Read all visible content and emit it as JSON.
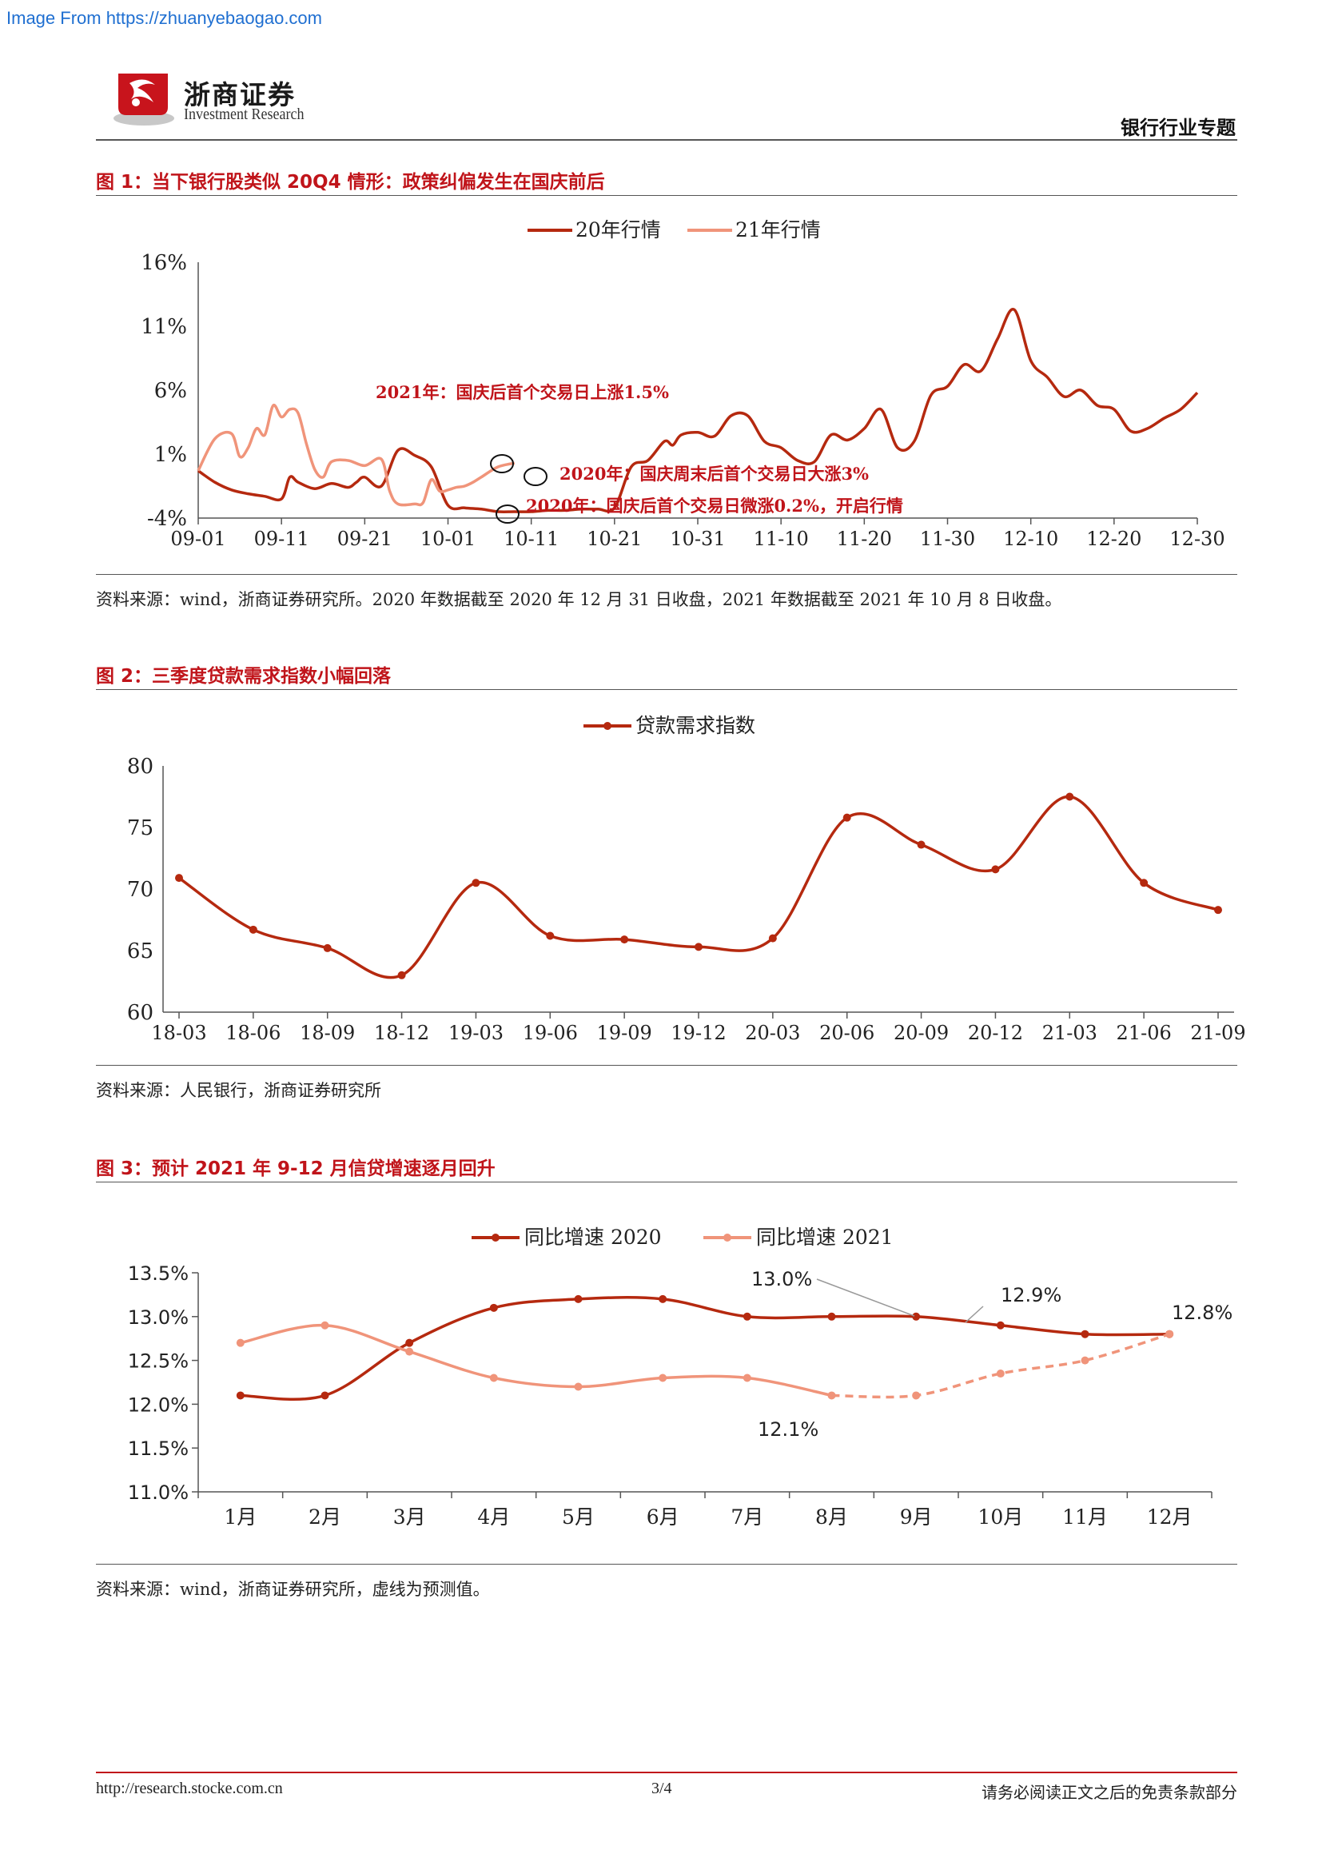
{
  "watermark": "Image From https://zhuanyebaogao.com",
  "header": {
    "brand_cn": "浙商证券",
    "brand_en": "Investment Research",
    "section": "银行行业专题"
  },
  "figures": [
    {
      "title": "图 1：当下银行股类似 20Q4 情形：政策纠偏发生在国庆前后",
      "source": "资料来源：wind，浙商证券研究所。2020 年数据截至 2020 年 12 月 31 日收盘，2021 年数据截至 2021 年 10 月 8 日收盘。"
    },
    {
      "title": "图 2：三季度贷款需求指数小幅回落",
      "source": "资料来源：人民银行，浙商证券研究所"
    },
    {
      "title": "图 3：预计 2021 年 9-12 月信贷增速逐月回升",
      "source": "资料来源：wind，浙商证券研究所，虚线为预测值。"
    }
  ],
  "footer": {
    "left": "http://research.stocke.com.cn",
    "center": "3/4",
    "right": "请务必阅读正文之后的免责条款部分"
  },
  "colors": {
    "dark": "#b5290f",
    "light": "#f0947a",
    "accent": "#c0141a"
  },
  "chart_data": [
    {
      "type": "line",
      "ylim": [
        -4,
        16
      ],
      "yticks": [
        "16%",
        "11%",
        "6%",
        "1%",
        "-4%"
      ],
      "ytick_values": [
        16,
        11,
        6,
        1,
        -4
      ],
      "xtick_labels": [
        "09-01",
        "09-11",
        "09-21",
        "10-01",
        "10-11",
        "10-21",
        "10-31",
        "11-10",
        "11-20",
        "11-30",
        "12-10",
        "12-20",
        "12-30"
      ],
      "x_range": [
        0,
        120
      ],
      "series": [
        {
          "name": "20年行情",
          "x": [
            0,
            2,
            4,
            6,
            8,
            10,
            11,
            12,
            14,
            16,
            18,
            19,
            20,
            22,
            24,
            26,
            28,
            30,
            32,
            34,
            36,
            38,
            40,
            42,
            44,
            46,
            48,
            50,
            52,
            54,
            56,
            57,
            58,
            60,
            62,
            64,
            66,
            68,
            70,
            72,
            74,
            76,
            78,
            80,
            82,
            84,
            86,
            88,
            90,
            92,
            94,
            96,
            98,
            100,
            102,
            104,
            106,
            108,
            110,
            112,
            114,
            116,
            118,
            120
          ],
          "y": [
            -0.3,
            -1.2,
            -1.8,
            -2.1,
            -2.3,
            -2.5,
            -0.8,
            -1.2,
            -1.7,
            -1.3,
            -1.6,
            -1.2,
            -0.8,
            -1.5,
            1.3,
            0.9,
            0.0,
            -3.0,
            -3.2,
            -3.3,
            -3.5,
            -3.5,
            -3.5,
            -3.4,
            -3.4,
            -3.3,
            -3.3,
            -3.2,
            0.0,
            0.5,
            2.0,
            1.7,
            2.5,
            2.7,
            2.4,
            4.0,
            4.0,
            2.0,
            1.5,
            0.5,
            0.4,
            2.5,
            2.1,
            3.0,
            4.5,
            1.5,
            2.0,
            5.6,
            6.3,
            8.0,
            7.5,
            10.0,
            12.3,
            8.3,
            7.0,
            5.5,
            6.0,
            4.8,
            4.5,
            2.8,
            3.0,
            3.8,
            4.5,
            5.8
          ]
        },
        {
          "name": "21年行情",
          "x": [
            0,
            2,
            4,
            5,
            6,
            7,
            8,
            9,
            10,
            11,
            12,
            13,
            14,
            15,
            16,
            18,
            20,
            22,
            23,
            24,
            26,
            27,
            28,
            29,
            30,
            31,
            32,
            33,
            34,
            36,
            38
          ],
          "y": [
            -0.3,
            2.2,
            2.6,
            0.8,
            1.5,
            3.0,
            2.5,
            4.8,
            3.9,
            4.5,
            4.2,
            1.8,
            -0.2,
            -0.8,
            0.4,
            0.5,
            0.1,
            0.6,
            -1.9,
            -2.9,
            -2.9,
            -2.8,
            -1.0,
            -1.9,
            -1.8,
            -1.6,
            -1.5,
            -1.2,
            -0.8,
            0.0,
            0.3
          ]
        }
      ],
      "annotations": [
        "2021年：国庆后首个交易日上涨1.5%",
        "2020年：国庆周末后首个交易日大涨3%",
        "2020年：国庆后首个交易日微涨0.2%，开启行情"
      ]
    },
    {
      "type": "line",
      "ylim": [
        60,
        80
      ],
      "yticks": [
        "80",
        "75",
        "70",
        "65",
        "60"
      ],
      "ytick_values": [
        80,
        75,
        70,
        65,
        60
      ],
      "categories": [
        "18-03",
        "18-06",
        "18-09",
        "18-12",
        "19-03",
        "19-06",
        "19-09",
        "19-12",
        "20-03",
        "20-06",
        "20-09",
        "20-12",
        "21-03",
        "21-06",
        "21-09"
      ],
      "series": [
        {
          "name": "贷款需求指数",
          "values": [
            70.9,
            66.7,
            65.2,
            63.0,
            70.5,
            66.2,
            65.9,
            65.3,
            66.0,
            75.8,
            73.6,
            71.6,
            77.5,
            70.5,
            68.3
          ]
        }
      ]
    },
    {
      "type": "line",
      "ylim": [
        11.0,
        13.5
      ],
      "yticks": [
        "13.5%",
        "13.0%",
        "12.5%",
        "12.0%",
        "11.5%",
        "11.0%"
      ],
      "ytick_values": [
        13.5,
        13.0,
        12.5,
        12.0,
        11.5,
        11.0
      ],
      "categories": [
        "1月",
        "2月",
        "3月",
        "4月",
        "5月",
        "6月",
        "7月",
        "8月",
        "9月",
        "10月",
        "11月",
        "12月"
      ],
      "series": [
        {
          "name": "同比增速 2020",
          "values": [
            12.1,
            12.1,
            12.7,
            13.1,
            13.2,
            13.2,
            13.0,
            13.0,
            13.0,
            12.9,
            12.8,
            12.8
          ]
        },
        {
          "name": "同比增速 2021",
          "values": [
            12.7,
            12.9,
            12.6,
            12.3,
            12.2,
            12.3,
            12.3,
            12.1,
            12.1,
            12.35,
            12.5,
            12.8
          ],
          "forecast_from_index": 7
        }
      ],
      "data_labels": [
        "13.0%",
        "12.9%",
        "12.8%",
        "12.1%"
      ]
    }
  ]
}
